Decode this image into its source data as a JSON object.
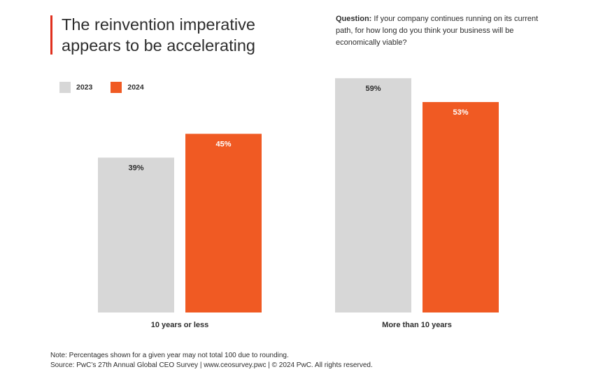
{
  "header": {
    "title": "The reinvention imperative appears to be accelerating",
    "question_label": "Question:",
    "question_text": "If your company continues running on its current path, for how long do you think your business will be economically viable?"
  },
  "colors": {
    "accent": "#e0301e",
    "series_2023": "#d7d7d7",
    "series_2024": "#f05a23"
  },
  "chart_data": {
    "type": "bar",
    "categories": [
      "10 years or less",
      "More than 10 years"
    ],
    "series": [
      {
        "name": "2023",
        "values": [
          39,
          59
        ],
        "labels": [
          "39%",
          "59%"
        ]
      },
      {
        "name": "2024",
        "values": [
          45,
          53
        ],
        "labels": [
          "45%",
          "53%"
        ]
      }
    ],
    "title": "",
    "xlabel": "",
    "ylabel": "",
    "ylim": [
      0,
      60
    ],
    "grid": false,
    "legend": "top-left"
  },
  "footer": {
    "note": "Note: Percentages shown for a given year may not total 100 due to rounding.",
    "source": "Source: PwC’s 27th Annual Global CEO Survey  |  www.ceosurvey.pwc  |  © 2024 PwC. All rights reserved."
  }
}
